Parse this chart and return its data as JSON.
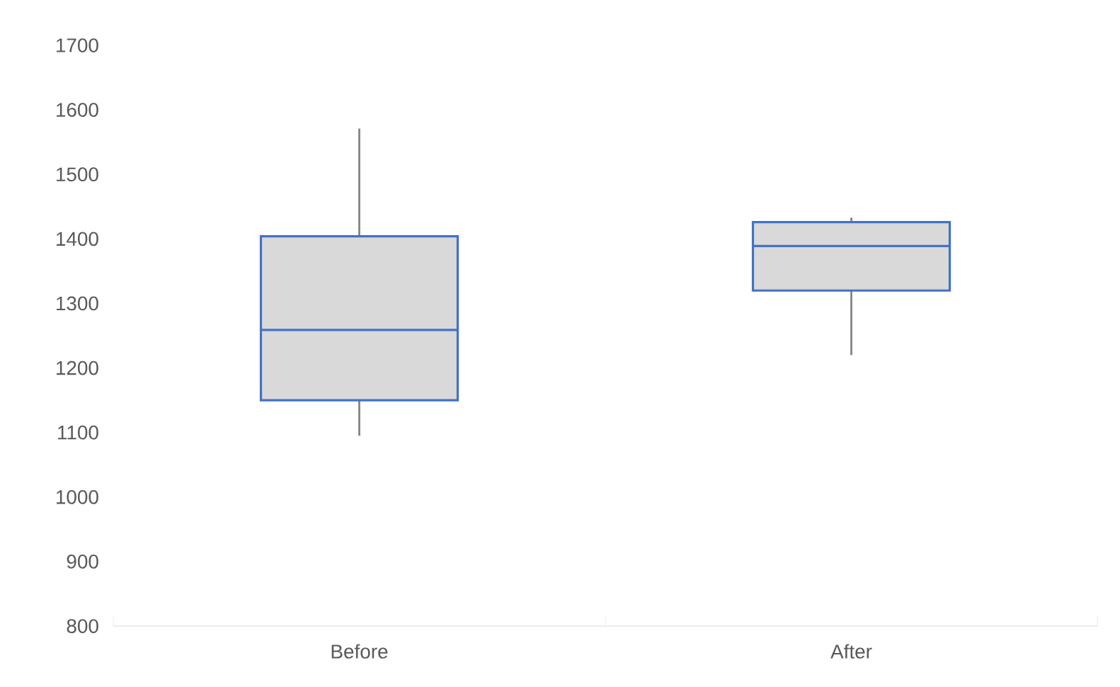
{
  "chart_data": {
    "type": "box",
    "categories": [
      "Before",
      "After"
    ],
    "series": [
      {
        "color": "#4472c4",
        "boxes": [
          {
            "low": 1095,
            "q1": 1150,
            "median": 1259,
            "q3": 1404,
            "high": 1571
          },
          {
            "low": 1220,
            "q1": 1320,
            "median": 1389,
            "q3": 1426,
            "high": 1433
          }
        ]
      }
    ],
    "ylim": [
      800,
      1700
    ],
    "yticks": [
      800,
      900,
      1000,
      1100,
      1200,
      1300,
      1400,
      1500,
      1600,
      1700
    ]
  }
}
